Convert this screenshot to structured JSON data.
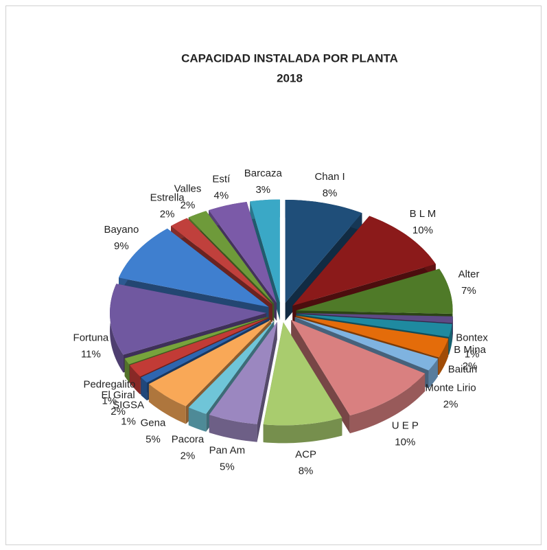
{
  "chart_data": {
    "type": "pie3d",
    "title": [
      "CAPACIDAD INSTALADA POR PLANTA",
      "2018"
    ],
    "categories": [
      "Chan I",
      "B L M",
      "Alter",
      "Bontex",
      "B Mina",
      "Baitún",
      "Monte Lirio",
      "U E P",
      "ACP",
      "Pan Am",
      "Pacora",
      "Gena",
      "SIGSA",
      "El Giral",
      "Pedregalito",
      "Fortuna",
      "Bayano",
      "Estrella",
      "Valles",
      "Estí",
      "Barcaza"
    ],
    "values": [
      8,
      10,
      7,
      1,
      2,
      3,
      2,
      10,
      8,
      5,
      2,
      5,
      1,
      2,
      1,
      11,
      9,
      2,
      2,
      4,
      3
    ],
    "value_labels": [
      "8%",
      "10%",
      "7%",
      "1%",
      "2%",
      null,
      "2%",
      "10%",
      "8%",
      "5%",
      "2%",
      "5%",
      "1%",
      "2%",
      "1%",
      "11%",
      "9%",
      "2%",
      "2%",
      "4%",
      "3%"
    ],
    "colors": [
      "#1f4e79",
      "#8b1a1a",
      "#4f7a28",
      "#5e4a85",
      "#1f8aa0",
      "#e46c0a",
      "#7fb3e0",
      "#d98080",
      "#a9cc6e",
      "#9b87c0",
      "#6fc5d8",
      "#f9a857",
      "#2e66b0",
      "#c23b36",
      "#77a33c",
      "#7058a0",
      "#3f7fcf",
      "#c0403c",
      "#6e9a3a",
      "#7b5aa8",
      "#3aa8c6",
      "#f28a2e"
    ]
  }
}
